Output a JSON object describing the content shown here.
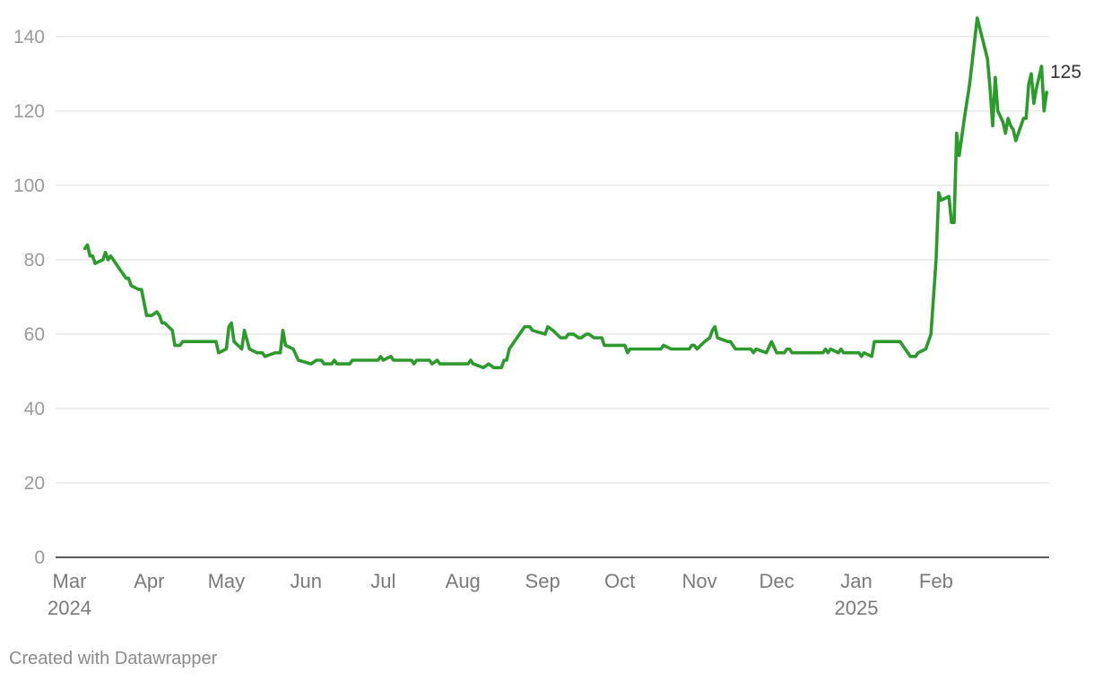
{
  "chart_data": {
    "type": "line",
    "color": "#2e9a2e",
    "ylim": [
      0,
      145
    ],
    "yticks": [
      0,
      20,
      40,
      60,
      80,
      100,
      120,
      140
    ],
    "xlim": [
      "2024-02-26",
      "2025-03-10"
    ],
    "xticks": [
      {
        "date": "2024-03-01",
        "label": "Mar",
        "sub": "2024"
      },
      {
        "date": "2024-04-01",
        "label": "Apr",
        "sub": ""
      },
      {
        "date": "2024-05-01",
        "label": "May",
        "sub": ""
      },
      {
        "date": "2024-06-01",
        "label": "Jun",
        "sub": ""
      },
      {
        "date": "2024-07-01",
        "label": "Jul",
        "sub": ""
      },
      {
        "date": "2024-08-01",
        "label": "Aug",
        "sub": ""
      },
      {
        "date": "2024-09-01",
        "label": "Sep",
        "sub": ""
      },
      {
        "date": "2024-10-01",
        "label": "Oct",
        "sub": ""
      },
      {
        "date": "2024-11-01",
        "label": "Nov",
        "sub": ""
      },
      {
        "date": "2024-12-01",
        "label": "Dec",
        "sub": ""
      },
      {
        "date": "2025-01-01",
        "label": "Jan",
        "sub": "2025"
      },
      {
        "date": "2025-02-01",
        "label": "Feb",
        "sub": ""
      }
    ],
    "series": [
      {
        "end_label": "125",
        "points": [
          [
            "2024-03-07",
            83
          ],
          [
            "2024-03-08",
            84
          ],
          [
            "2024-03-09",
            81
          ],
          [
            "2024-03-10",
            81
          ],
          [
            "2024-03-11",
            79
          ],
          [
            "2024-03-14",
            80
          ],
          [
            "2024-03-15",
            82
          ],
          [
            "2024-03-16",
            80
          ],
          [
            "2024-03-17",
            81
          ],
          [
            "2024-03-20",
            78
          ],
          [
            "2024-03-23",
            75
          ],
          [
            "2024-03-24",
            75
          ],
          [
            "2024-03-25",
            73
          ],
          [
            "2024-03-28",
            72
          ],
          [
            "2024-03-29",
            72
          ],
          [
            "2024-03-31",
            65
          ],
          [
            "2024-04-02",
            65
          ],
          [
            "2024-04-04",
            66
          ],
          [
            "2024-04-05",
            65
          ],
          [
            "2024-04-06",
            63
          ],
          [
            "2024-04-07",
            63
          ],
          [
            "2024-04-10",
            61
          ],
          [
            "2024-04-11",
            57
          ],
          [
            "2024-04-13",
            57
          ],
          [
            "2024-04-14",
            58
          ],
          [
            "2024-04-27",
            58
          ],
          [
            "2024-04-28",
            55
          ],
          [
            "2024-05-01",
            56
          ],
          [
            "2024-05-02",
            62
          ],
          [
            "2024-05-03",
            63
          ],
          [
            "2024-05-04",
            58
          ],
          [
            "2024-05-07",
            56
          ],
          [
            "2024-05-08",
            61
          ],
          [
            "2024-05-10",
            56
          ],
          [
            "2024-05-13",
            55
          ],
          [
            "2024-05-15",
            55
          ],
          [
            "2024-05-16",
            54
          ],
          [
            "2024-05-20",
            55
          ],
          [
            "2024-05-22",
            55
          ],
          [
            "2024-05-23",
            61
          ],
          [
            "2024-05-24",
            57
          ],
          [
            "2024-05-27",
            56
          ],
          [
            "2024-05-29",
            53
          ],
          [
            "2024-06-03",
            52
          ],
          [
            "2024-06-05",
            53
          ],
          [
            "2024-06-07",
            53
          ],
          [
            "2024-06-08",
            52
          ],
          [
            "2024-06-11",
            52
          ],
          [
            "2024-06-12",
            53
          ],
          [
            "2024-06-13",
            52
          ],
          [
            "2024-06-18",
            52
          ],
          [
            "2024-06-19",
            53
          ],
          [
            "2024-06-29",
            53
          ],
          [
            "2024-06-30",
            54
          ],
          [
            "2024-07-01",
            53
          ],
          [
            "2024-07-04",
            54
          ],
          [
            "2024-07-05",
            53
          ],
          [
            "2024-07-12",
            53
          ],
          [
            "2024-07-13",
            52
          ],
          [
            "2024-07-14",
            53
          ],
          [
            "2024-07-19",
            53
          ],
          [
            "2024-07-20",
            52
          ],
          [
            "2024-07-22",
            53
          ],
          [
            "2024-07-23",
            52
          ],
          [
            "2024-08-03",
            52
          ],
          [
            "2024-08-04",
            53
          ],
          [
            "2024-08-05",
            52
          ],
          [
            "2024-08-09",
            51
          ],
          [
            "2024-08-11",
            52
          ],
          [
            "2024-08-13",
            51
          ],
          [
            "2024-08-16",
            51
          ],
          [
            "2024-08-17",
            53
          ],
          [
            "2024-08-18",
            53
          ],
          [
            "2024-08-19",
            56
          ],
          [
            "2024-08-21",
            58
          ],
          [
            "2024-08-25",
            62
          ],
          [
            "2024-08-27",
            62
          ],
          [
            "2024-08-28",
            61
          ],
          [
            "2024-09-02",
            60
          ],
          [
            "2024-09-03",
            62
          ],
          [
            "2024-09-05",
            61
          ],
          [
            "2024-09-08",
            59
          ],
          [
            "2024-09-10",
            59
          ],
          [
            "2024-09-11",
            60
          ],
          [
            "2024-09-13",
            60
          ],
          [
            "2024-09-15",
            59
          ],
          [
            "2024-09-16",
            59
          ],
          [
            "2024-09-18",
            60
          ],
          [
            "2024-09-19",
            60
          ],
          [
            "2024-09-21",
            59
          ],
          [
            "2024-09-24",
            59
          ],
          [
            "2024-09-25",
            57
          ],
          [
            "2024-10-03",
            57
          ],
          [
            "2024-10-04",
            55
          ],
          [
            "2024-10-05",
            56
          ],
          [
            "2024-10-17",
            56
          ],
          [
            "2024-10-18",
            57
          ],
          [
            "2024-10-21",
            56
          ],
          [
            "2024-10-28",
            56
          ],
          [
            "2024-10-29",
            57
          ],
          [
            "2024-10-30",
            57
          ],
          [
            "2024-10-31",
            56
          ],
          [
            "2024-11-03",
            58
          ],
          [
            "2024-11-05",
            59
          ],
          [
            "2024-11-06",
            61
          ],
          [
            "2024-11-07",
            62
          ],
          [
            "2024-11-08",
            59
          ],
          [
            "2024-11-12",
            58
          ],
          [
            "2024-11-13",
            58
          ],
          [
            "2024-11-15",
            56
          ],
          [
            "2024-11-21",
            56
          ],
          [
            "2024-11-22",
            55
          ],
          [
            "2024-11-23",
            56
          ],
          [
            "2024-11-27",
            55
          ],
          [
            "2024-11-29",
            58
          ],
          [
            "2024-12-01",
            55
          ],
          [
            "2024-12-04",
            55
          ],
          [
            "2024-12-05",
            56
          ],
          [
            "2024-12-06",
            56
          ],
          [
            "2024-12-07",
            55
          ],
          [
            "2024-12-19",
            55
          ],
          [
            "2024-12-20",
            56
          ],
          [
            "2024-12-21",
            55
          ],
          [
            "2024-12-22",
            56
          ],
          [
            "2024-12-25",
            55
          ],
          [
            "2024-12-26",
            56
          ],
          [
            "2024-12-27",
            55
          ],
          [
            "2025-01-02",
            55
          ],
          [
            "2025-01-03",
            54
          ],
          [
            "2025-01-04",
            55
          ],
          [
            "2025-01-07",
            54
          ],
          [
            "2025-01-08",
            58
          ],
          [
            "2025-01-18",
            58
          ],
          [
            "2025-01-22",
            54
          ],
          [
            "2025-01-24",
            54
          ],
          [
            "2025-01-25",
            55
          ],
          [
            "2025-01-28",
            56
          ],
          [
            "2025-01-30",
            60
          ],
          [
            "2025-02-01",
            80
          ],
          [
            "2025-02-02",
            98
          ],
          [
            "2025-02-03",
            96
          ],
          [
            "2025-02-06",
            97
          ],
          [
            "2025-02-07",
            90
          ],
          [
            "2025-02-08",
            90
          ],
          [
            "2025-02-09",
            114
          ],
          [
            "2025-02-10",
            108
          ],
          [
            "2025-02-12",
            118
          ],
          [
            "2025-02-14",
            127
          ],
          [
            "2025-02-17",
            145
          ],
          [
            "2025-02-21",
            134
          ],
          [
            "2025-02-22",
            126
          ],
          [
            "2025-02-23",
            116
          ],
          [
            "2025-02-24",
            129
          ],
          [
            "2025-02-25",
            120
          ],
          [
            "2025-02-27",
            117
          ],
          [
            "2025-02-28",
            114
          ],
          [
            "2025-03-01",
            118
          ],
          [
            "2025-03-02",
            116
          ],
          [
            "2025-03-03",
            115
          ],
          [
            "2025-03-04",
            112
          ],
          [
            "2025-03-05",
            114
          ],
          [
            "2025-03-07",
            118
          ],
          [
            "2025-03-08",
            118
          ],
          [
            "2025-03-09",
            127
          ],
          [
            "2025-03-10",
            130
          ],
          [
            "2025-03-11",
            122
          ],
          [
            "2025-03-12",
            126
          ],
          [
            "2025-03-14",
            132
          ],
          [
            "2025-03-15",
            120
          ],
          [
            "2025-03-16",
            125
          ]
        ]
      }
    ]
  },
  "credit": "Created with Datawrapper"
}
